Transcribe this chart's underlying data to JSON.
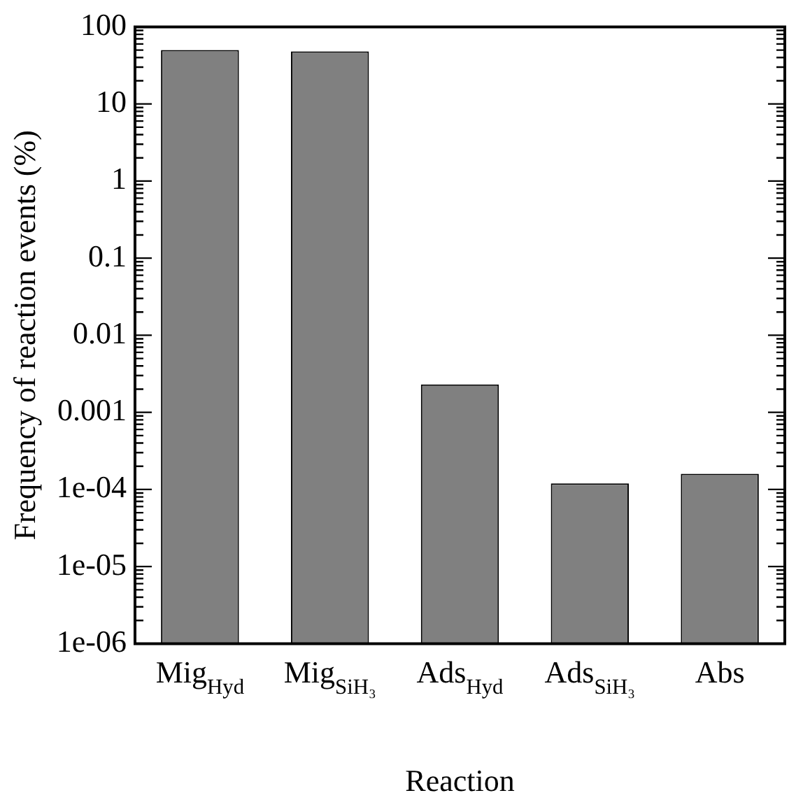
{
  "chart_data": {
    "type": "bar",
    "xlabel": "Reaction",
    "ylabel": "Frequency of reaction events (%)",
    "categories": [
      "Mig$_{Hyd}$",
      "Mig$_{SiH₃}$",
      "Ads$_{Hyd}$",
      "Ads$_{SiH₃}$",
      "Abs"
    ],
    "values": [
      50,
      48,
      0.0023,
      0.00012,
      0.00016
    ],
    "color": "#808080",
    "log": "y",
    "ylim": [
      1e-06,
      100
    ],
    "yticks": [
      {
        "value": 1e-06,
        "label": "1e-06"
      },
      {
        "value": 1e-05,
        "label": "1e-05"
      },
      {
        "value": 0.0001,
        "label": "1e-04"
      },
      0.001,
      0.01,
      0.1,
      1,
      10,
      100
    ],
    "grid": false,
    "legend": false
  }
}
